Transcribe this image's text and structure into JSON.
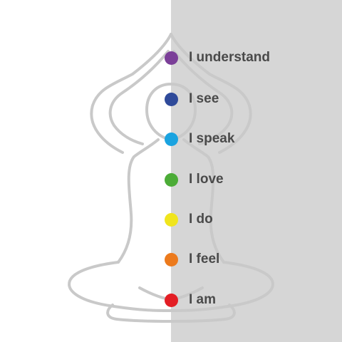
{
  "chakras": [
    {
      "label": "I understand",
      "color": "#7b3f98"
    },
    {
      "label": "I see",
      "color": "#2f4a9a"
    },
    {
      "label": "I speak",
      "color": "#1aa3e0"
    },
    {
      "label": "I love",
      "color": "#4cac37"
    },
    {
      "label": "I do",
      "color": "#f0e51d"
    },
    {
      "label": "I feel",
      "color": "#ec7a1c"
    },
    {
      "label": "I am",
      "color": "#e31e24"
    }
  ]
}
